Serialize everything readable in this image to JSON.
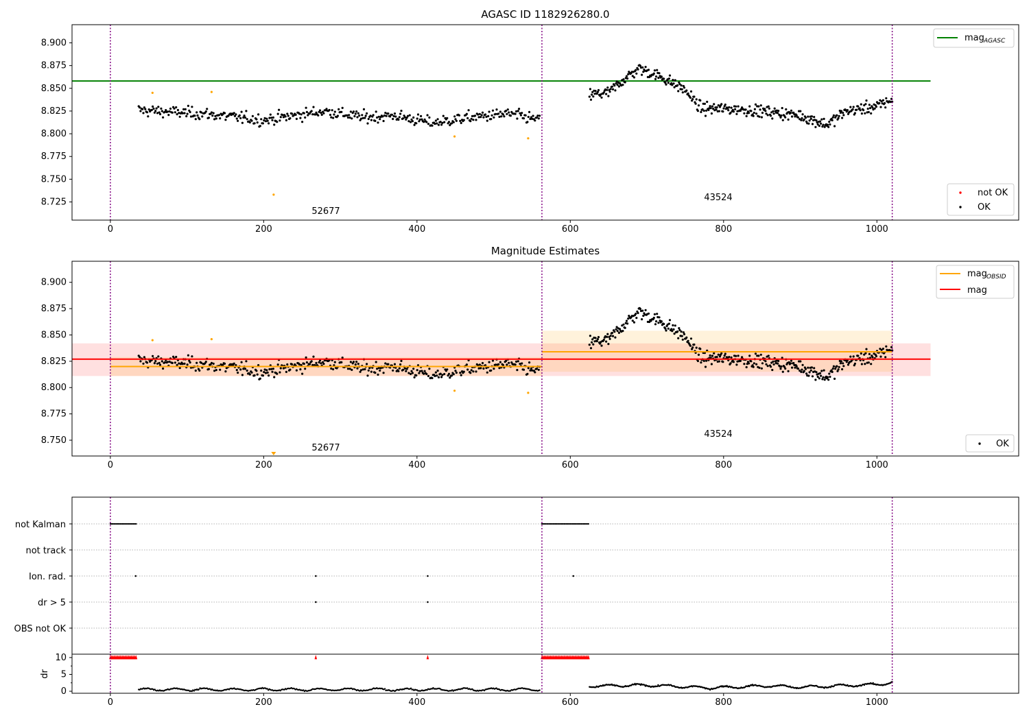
{
  "figure": {
    "title_top": "AGASC ID 1182926280.0",
    "title_mid": "Magnitude Estimates"
  },
  "chart_data": [
    {
      "type": "scatter",
      "title": "AGASC ID 1182926280.0",
      "xlim": [
        -50,
        1185
      ],
      "ylim": [
        8.705,
        8.92
      ],
      "xticks": [
        0,
        200,
        400,
        600,
        800,
        1000
      ],
      "yticks": [
        8.725,
        8.75,
        8.775,
        8.8,
        8.825,
        8.85,
        8.875,
        8.9
      ],
      "vlines": [
        0,
        563,
        1020
      ],
      "hlines": [
        {
          "name": "mag_AGASC",
          "y": 8.858,
          "x": [
            -50,
            1070
          ],
          "color": "#008000"
        }
      ],
      "annotations": [
        {
          "text": "52677",
          "x": 280,
          "y": 8.712
        },
        {
          "text": "43524",
          "x": 790,
          "y": 8.727
        }
      ],
      "series": [
        {
          "name": "OK",
          "color": "#000000",
          "segments": [
            {
              "x0": 37,
              "x1": 560,
              "n": 430,
              "anchors": [
                [
                  37,
                  8.826
                ],
                [
                  120,
                  8.822
                ],
                [
                  200,
                  8.815
                ],
                [
                  280,
                  8.825
                ],
                [
                  330,
                  8.818
                ],
                [
                  370,
                  8.82
                ],
                [
                  420,
                  8.812
                ],
                [
                  470,
                  8.818
                ],
                [
                  520,
                  8.822
                ],
                [
                  560,
                  8.815
                ]
              ],
              "noise": 0.0068
            },
            {
              "x0": 625,
              "x1": 1020,
              "n": 400,
              "anchors": [
                [
                  625,
                  8.843
                ],
                [
                  650,
                  8.845
                ],
                [
                  670,
                  8.86
                ],
                [
                  690,
                  8.872
                ],
                [
                  720,
                  8.862
                ],
                [
                  750,
                  8.848
                ],
                [
                  770,
                  8.828
                ],
                [
                  820,
                  8.827
                ],
                [
                  860,
                  8.824
                ],
                [
                  900,
                  8.82
                ],
                [
                  935,
                  8.81
                ],
                [
                  960,
                  8.825
                ],
                [
                  1000,
                  8.83
                ],
                [
                  1020,
                  8.838
                ]
              ],
              "noise": 0.0068
            }
          ]
        },
        {
          "name": "not OK",
          "color": "#ff0000",
          "points": [
            [
              55,
              8.845
            ],
            [
              132,
              8.846
            ],
            [
              213,
              8.733
            ],
            [
              449,
              8.797
            ],
            [
              545,
              8.795
            ]
          ]
        }
      ],
      "legend": [
        "mag_AGASC",
        "not OK",
        "OK"
      ]
    },
    {
      "type": "scatter",
      "title": "Magnitude Estimates",
      "xlim": [
        -50,
        1185
      ],
      "ylim": [
        8.735,
        8.92
      ],
      "xticks": [
        0,
        200,
        400,
        600,
        800,
        1000
      ],
      "yticks": [
        8.75,
        8.775,
        8.8,
        8.825,
        8.85,
        8.875,
        8.9
      ],
      "vlines": [
        0,
        563,
        1020
      ],
      "bands": [
        {
          "name": "mag",
          "y": 8.827,
          "lo": 8.811,
          "hi": 8.842,
          "x": [
            -50,
            1070
          ],
          "color": "#ff0000"
        },
        {
          "name": "mag_OBSID",
          "y": 8.82,
          "lo": 8.811,
          "hi": 8.829,
          "x": [
            0,
            563
          ],
          "color": "#ffa500"
        },
        {
          "name": "mag_OBSID",
          "y": 8.834,
          "lo": 8.815,
          "hi": 8.854,
          "x": [
            563,
            1020
          ],
          "color": "#ffa500"
        }
      ],
      "annotations": [
        {
          "text": "52677",
          "x": 280,
          "y": 8.742
        },
        {
          "text": "43524",
          "x": 790,
          "y": 8.755
        }
      ],
      "legend": [
        "mag_OBSID",
        "mag",
        "OK"
      ]
    },
    {
      "type": "scatter",
      "title": "",
      "categories": [
        "not Kalman",
        "not track",
        "Ion. rad.",
        "dr > 5",
        "OBS not OK"
      ],
      "flags": {
        "not Kalman": [
          [
            0,
            35
          ],
          [
            563,
            625
          ]
        ],
        "Ion. rad.": [
          33,
          268,
          414,
          604
        ],
        "dr > 5": [
          268,
          414
        ]
      },
      "xlim": [
        -50,
        1185
      ],
      "vlines": [
        0,
        563,
        1020
      ]
    },
    {
      "type": "scatter",
      "ylabel": "dr",
      "ylim": [
        -0.6,
        11
      ],
      "yticks": [
        0,
        5,
        10
      ],
      "xticks": [
        0,
        200,
        400,
        600,
        800,
        1000
      ],
      "xlim": [
        -50,
        1185
      ],
      "clipped_points_x": [
        [
          0,
          35
        ],
        [
          563,
          625
        ],
        268,
        414
      ],
      "segments": [
        {
          "x0": 37,
          "x1": 560,
          "n": 400,
          "level": 0.5
        },
        {
          "x0": 625,
          "x1": 1020,
          "n": 380,
          "anchors": [
            [
              625,
              1.5
            ],
            [
              700,
              1.8
            ],
            [
              780,
              1.0
            ],
            [
              860,
              1.6
            ],
            [
              900,
              1.2
            ],
            [
              1000,
              2.0
            ],
            [
              1020,
              2.6
            ]
          ]
        }
      ]
    }
  ],
  "labels": {
    "legend_top": {
      "mag_AGASC": "mag",
      "mag_AGASC_sub": "AGASC",
      "not_ok": "not OK",
      "ok": "OK"
    },
    "legend_mid": {
      "mag_OBSID": "mag",
      "mag_OBSID_sub": "OBSID",
      "mag": "mag",
      "ok": "OK"
    },
    "flags_y": [
      "not Kalman",
      "not track",
      "Ion. rad.",
      "dr > 5",
      "OBS not OK"
    ],
    "dr_ylabel": "dr",
    "obs1": "52677",
    "obs2": "43524"
  },
  "colors": {
    "ok": "#000000",
    "notok": "#ff0000",
    "mag": "#ff0000",
    "mag_obsid": "#ffa500",
    "mag_agasc": "#008000",
    "vline": "#800080"
  }
}
